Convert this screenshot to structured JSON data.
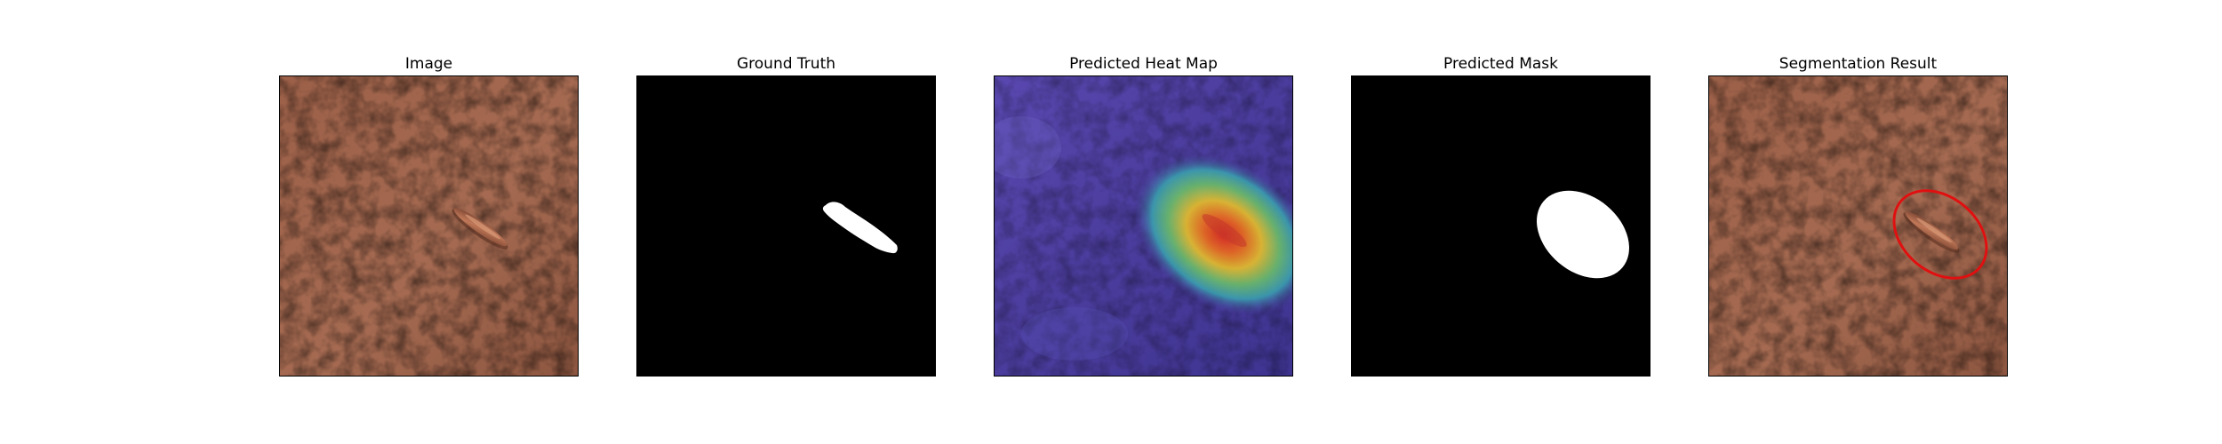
{
  "panels": [
    {
      "title": "Image"
    },
    {
      "title": "Ground Truth"
    },
    {
      "title": "Predicted Heat Map"
    },
    {
      "title": "Predicted Mask"
    },
    {
      "title": "Segmentation Result"
    }
  ],
  "colors": {
    "leather_base": "#9a6148",
    "leather_crease": "#6e3e2b",
    "defect": "#b36a4c",
    "mask_foreground": "#ffffff",
    "mask_background": "#000000",
    "heatmap_low": "#4b3f9a",
    "heatmap_high": "#e02a18",
    "contour": "#e01010"
  }
}
